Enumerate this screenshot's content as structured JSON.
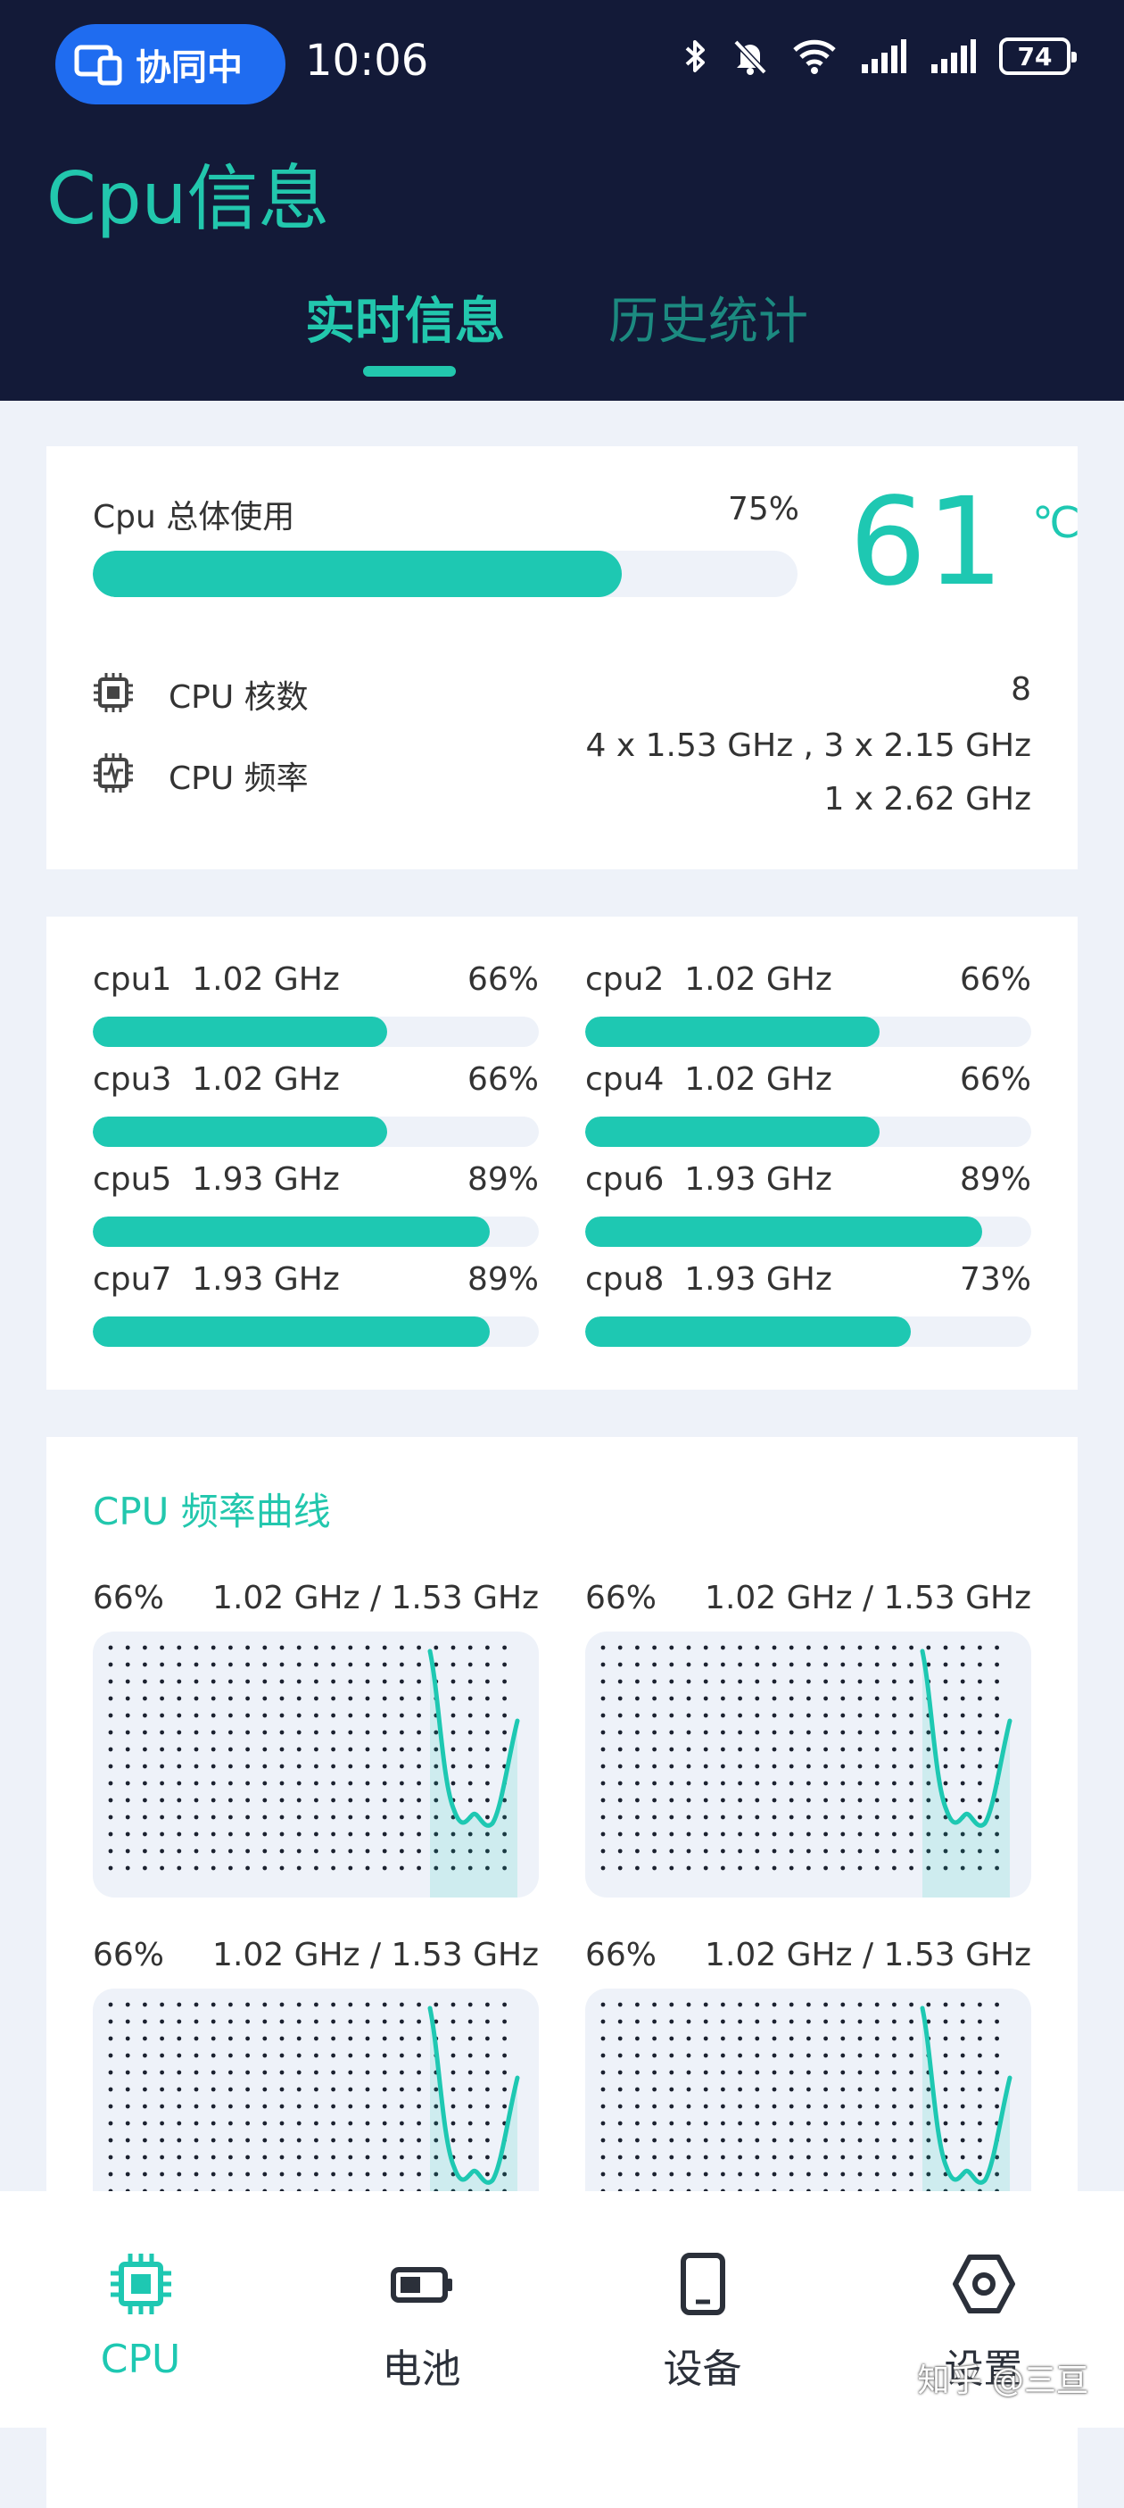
{
  "status_bar": {
    "collab_label": "协同中",
    "time": "10:06",
    "battery": "74"
  },
  "app": {
    "title": "Cpu信息",
    "tabs": [
      {
        "label": "实时信息",
        "active": true
      },
      {
        "label": "历史统计",
        "active": false
      }
    ]
  },
  "summary": {
    "usage_label": "Cpu 总体使用",
    "usage_percent": "75%",
    "usage_value": 75,
    "temperature": "61",
    "temperature_unit": "℃",
    "cores_label": "CPU 核数",
    "cores_value": "8",
    "freq_label": "CPU 频率",
    "freq_line1": "4 x 1.53 GHz , 3 x 2.15 GHz",
    "freq_line2": "1 x 2.62 GHz"
  },
  "cores": [
    {
      "name": "cpu1  1.02 GHz",
      "percent": "66%",
      "value": 66
    },
    {
      "name": "cpu2  1.02 GHz",
      "percent": "66%",
      "value": 66
    },
    {
      "name": "cpu3  1.02 GHz",
      "percent": "66%",
      "value": 66
    },
    {
      "name": "cpu4  1.02 GHz",
      "percent": "66%",
      "value": 66
    },
    {
      "name": "cpu5  1.93 GHz",
      "percent": "89%",
      "value": 89
    },
    {
      "name": "cpu6  1.93 GHz",
      "percent": "89%",
      "value": 89
    },
    {
      "name": "cpu7  1.93 GHz",
      "percent": "89%",
      "value": 89
    },
    {
      "name": "cpu8  1.93 GHz",
      "percent": "73%",
      "value": 73
    }
  ],
  "freq_curves": {
    "title": "CPU 频率曲线",
    "graphs": [
      {
        "percent": "66%",
        "freq": "1.02 GHz / 1.53 GHz"
      },
      {
        "percent": "66%",
        "freq": "1.02 GHz / 1.53 GHz"
      },
      {
        "percent": "66%",
        "freq": "1.02 GHz / 1.53 GHz"
      },
      {
        "percent": "66%",
        "freq": "1.02 GHz / 1.53 GHz"
      }
    ]
  },
  "bottom_nav": [
    {
      "label": "CPU",
      "icon": "cpu-icon",
      "active": true
    },
    {
      "label": "电池",
      "icon": "battery-icon",
      "active": false
    },
    {
      "label": "设备",
      "icon": "device-icon",
      "active": false
    },
    {
      "label": "设置",
      "icon": "settings-icon",
      "active": false
    }
  ],
  "watermark": "知乎 @三亘",
  "colors": {
    "accent": "#1ec8b2",
    "header_bg": "#131a38",
    "page_bg": "#eef2f9",
    "collab_blue": "#1f6cf0"
  }
}
